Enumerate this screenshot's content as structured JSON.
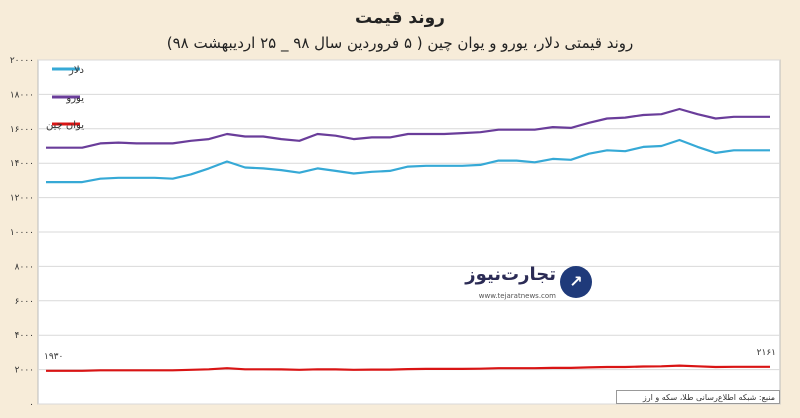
{
  "chart_data": {
    "type": "line",
    "title": "روند قیمت",
    "subtitle": "روند قیمتی دلار، یورو و یوان چین ( ۵ فروردین سال ۹۸ _ ۲۵ اردیبهشت ۹۸)",
    "y_ticks": [
      "۰",
      "۲۰۰۰",
      "۴۰۰۰",
      "۶۰۰۰",
      "۸۰۰۰",
      "۱۰۰۰۰",
      "۱۲۰۰۰",
      "۱۴۰۰۰",
      "۱۶۰۰۰",
      "۱۸۰۰۰",
      "۲۰۰۰۰"
    ],
    "ylim": [
      0,
      20000
    ],
    "grid": true,
    "legend_position": "top-left",
    "series": [
      {
        "name": "دلار",
        "color": "#36a9d6",
        "values": [
          12900,
          12900,
          12900,
          13100,
          13150,
          13150,
          13150,
          13100,
          13350,
          13700,
          14100,
          13750,
          13700,
          13600,
          13450,
          13700,
          13550,
          13400,
          13500,
          13550,
          13800,
          13850,
          13850,
          13850,
          13900,
          14150,
          14150,
          14050,
          14250,
          14200,
          14550,
          14750,
          14700,
          14950,
          15000,
          15350,
          14950,
          14600,
          14750,
          14750,
          14750
        ]
      },
      {
        "name": "یورو",
        "color": "#6a3d9a",
        "values": [
          14900,
          14900,
          14900,
          15150,
          15200,
          15150,
          15150,
          15150,
          15300,
          15400,
          15700,
          15550,
          15550,
          15400,
          15300,
          15700,
          15600,
          15400,
          15500,
          15500,
          15700,
          15700,
          15700,
          15750,
          15800,
          15950,
          15950,
          15950,
          16100,
          16050,
          16350,
          16600,
          16650,
          16800,
          16850,
          17150,
          16850,
          16600,
          16700,
          16700,
          16700
        ]
      },
      {
        "name": "یوان چین",
        "color": "#d91414",
        "values": [
          1930,
          1930,
          1930,
          1960,
          1960,
          1960,
          1960,
          1960,
          1990,
          2020,
          2080,
          2020,
          2020,
          2010,
          1990,
          2020,
          2010,
          1990,
          2000,
          2000,
          2030,
          2040,
          2040,
          2040,
          2050,
          2080,
          2080,
          2080,
          2100,
          2100,
          2130,
          2150,
          2150,
          2180,
          2190,
          2230,
          2190,
          2150,
          2161,
          2161,
          2161
        ]
      }
    ],
    "data_labels": {
      "first": "۱۹۳۰",
      "last": "۲۱۶۱"
    }
  },
  "source_note": "منبع: شبکه اطلاع‌رسانی طلا، سکه و ارز",
  "logo": {
    "name": "تجارت‌نیوز",
    "domain": "www.tejaratnews.com",
    "mark": "↗"
  }
}
